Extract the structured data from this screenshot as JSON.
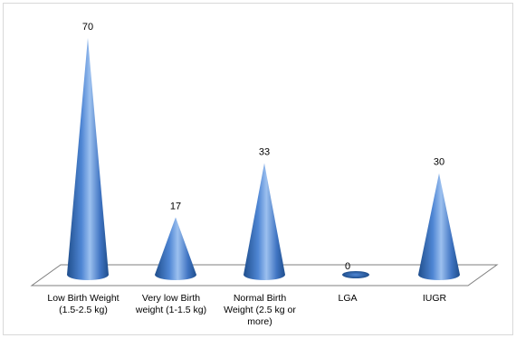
{
  "chart_data": {
    "type": "bar",
    "shape": "3d-cone",
    "categories": [
      [
        "Low Birth Weight",
        "(1.5-2.5 kg)"
      ],
      [
        "Very low Birth",
        "weight  (1-1.5 kg)"
      ],
      [
        "Normal Birth",
        "Weight (2.5 kg or",
        "more)"
      ],
      [
        "LGA"
      ],
      [
        "IUGR"
      ]
    ],
    "values": [
      70,
      17,
      33,
      0,
      30
    ],
    "data_labels": [
      "70",
      "17",
      "33",
      "0",
      "30"
    ],
    "ylim": [
      0,
      75
    ],
    "grid": false,
    "legend": "none",
    "colors": {
      "cone_dark": "#1f4e8c",
      "cone_mid": "#4f86d4",
      "cone_light": "#9cc0ef",
      "floor_stroke": "#7f7f7f"
    }
  }
}
